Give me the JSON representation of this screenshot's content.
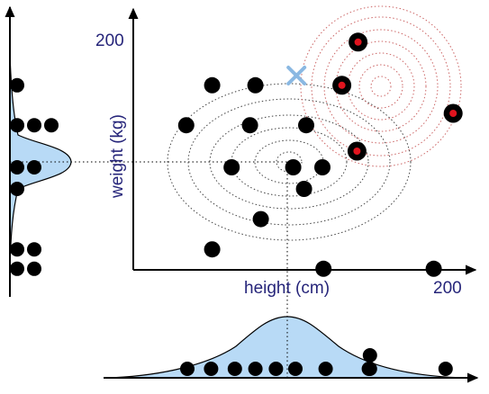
{
  "axes": {
    "x_label": "height (cm)",
    "y_label": "weight (kg)",
    "x_tick": "200",
    "y_tick": "200"
  },
  "colors": {
    "axis": "#000000",
    "text": "#26257a",
    "point": "#000000",
    "highlight": "#e0141e",
    "density_fill": "#b8daf6",
    "ellipse": "#444444",
    "circle_ring": "#cc6666",
    "cross": "#8ab8e2"
  },
  "chart_data": {
    "type": "scatter",
    "x_axis_label": "height (cm)",
    "y_axis_label": "weight (kg)",
    "x_ticks": [
      "200"
    ],
    "y_ticks": [
      "200"
    ],
    "points": [
      {
        "height": 73,
        "weight": 171
      },
      {
        "height": 113,
        "weight": 171
      },
      {
        "height": 49,
        "weight": 134
      },
      {
        "height": 108,
        "weight": 134
      },
      {
        "height": 160,
        "weight": 134
      },
      {
        "height": 91,
        "weight": 95
      },
      {
        "height": 148,
        "weight": 95
      },
      {
        "height": 175,
        "weight": 95
      },
      {
        "height": 118,
        "weight": 47
      },
      {
        "height": 158,
        "weight": 75
      },
      {
        "height": 73,
        "weight": 19
      },
      {
        "height": 176,
        "weight": 1
      },
      {
        "height": 278,
        "weight": 1
      }
    ],
    "highlighted_points": [
      {
        "height": 208,
        "weight": 211
      },
      {
        "height": 193,
        "weight": 171
      },
      {
        "height": 296,
        "weight": 145
      },
      {
        "height": 207,
        "weight": 110
      }
    ],
    "marker": {
      "symbol": "x",
      "height": 151,
      "weight": 180
    },
    "density_x_dots": [
      50,
      72,
      94,
      113,
      132,
      150,
      178,
      218,
      219,
      219,
      289
    ],
    "density_y_dots": [
      171,
      134,
      134,
      134,
      95,
      95,
      75,
      19,
      19,
      1,
      1
    ]
  }
}
